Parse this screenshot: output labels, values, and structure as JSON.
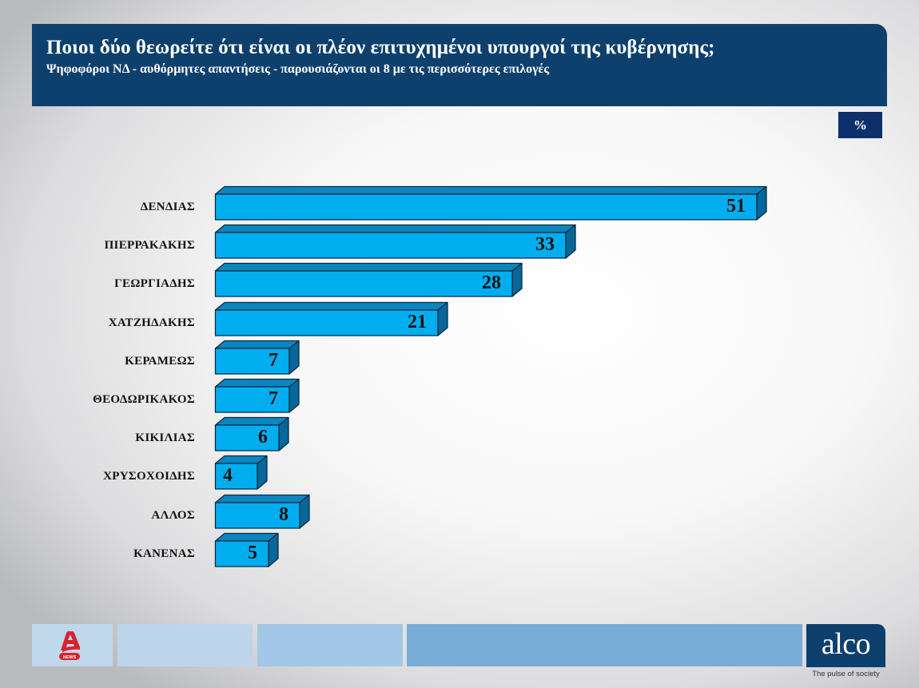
{
  "header": {
    "title": "Ποιοι δύο θεωρείτε ότι είναι οι πλέον επιτυχημένοι υπουργοί της κυβέρνησης;",
    "subtitle": "Ψηφοφόροι ΝΔ - αυθόρμητες απαντήσεις - παρουσιάζονται οι 8 με τις περισσότερες επιλογές"
  },
  "unit_badge": "%",
  "colors": {
    "header_bg": "#0e406d",
    "badge_bg": "#0d2f6b",
    "bar_front": "#00aeef",
    "bar_top": "#0a86c0",
    "bar_side": "#05679a",
    "bar_outline": "#0b2a40"
  },
  "chart_data": {
    "type": "bar",
    "orientation": "horizontal",
    "style": "3d",
    "title": "Ποιοι δύο θεωρείτε ότι είναι οι πλέον επιτυχημένοι υπουργοί της κυβέρνησης;",
    "subtitle": "Ψηφοφόροι ΝΔ - αυθόρμητες απαντήσεις - παρουσιάζονται οι 8 με τις περισσότερες επιλογές",
    "unit": "%",
    "categories": [
      "ΔΕΝΔΙΑΣ",
      "ΠΙΕΡΡΑΚΑΚΗΣ",
      "ΓΕΩΡΓΙΑΔΗΣ",
      "ΧΑΤΖΗΔΑΚΗΣ",
      "ΚΕΡΑΜΕΩΣ",
      "ΘΕΟΔΩΡΙΚΑΚΟΣ",
      "ΚΙΚΙΛΙΑΣ",
      "ΧΡΥΣΟΧΟΙΔΗΣ",
      "ΑΛΛΟΣ",
      "ΚΑΝΕΝΑΣ"
    ],
    "values": [
      51,
      33,
      28,
      21,
      7,
      7,
      6,
      4,
      8,
      5
    ],
    "xlabel": "",
    "ylabel": "",
    "grid": false,
    "legend": false,
    "data_labels": true
  },
  "footer": {
    "left_logo": "Alpha News",
    "left_logo_text": "NEWS",
    "right_logo": "alco",
    "right_tagline": "The pulse of society"
  }
}
